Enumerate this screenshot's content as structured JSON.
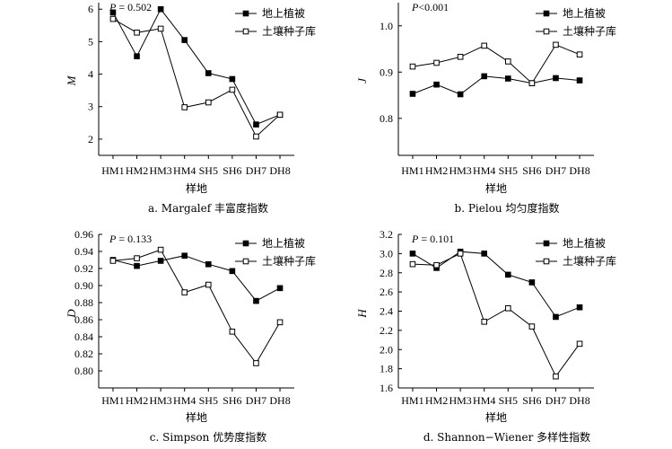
{
  "chart_data": [
    {
      "type": "line",
      "caption": "a. Margalef 丰富度指数",
      "p_label": "P",
      "p_text": " = 0.502",
      "ylabel": "M",
      "xlabel": "样地",
      "categories": [
        "HM1",
        "HM2",
        "HM3",
        "HM4",
        "SH5",
        "SH6",
        "DH7",
        "DH8"
      ],
      "ylim": [
        1.5,
        6.2
      ],
      "yticks": [
        2,
        3,
        4,
        5,
        6
      ],
      "ytick_labels": [
        "2",
        "3",
        "4",
        "5",
        "6"
      ],
      "series": [
        {
          "name": "地上植被",
          "marker": "filled",
          "values": [
            5.9,
            4.55,
            6.0,
            5.05,
            4.03,
            3.85,
            2.45,
            2.75
          ]
        },
        {
          "name": "土壤种子库",
          "marker": "hollow",
          "values": [
            5.7,
            5.28,
            5.4,
            2.98,
            3.13,
            3.52,
            2.08,
            2.75
          ]
        }
      ]
    },
    {
      "type": "line",
      "caption": "b. Pielou 均匀度指数",
      "p_label": "P",
      "p_text": "<0.001",
      "ylabel": "J",
      "xlabel": "样地",
      "categories": [
        "HM1",
        "HM2",
        "HM3",
        "HM4",
        "SH5",
        "SH6",
        "DH7",
        "DH8"
      ],
      "ylim": [
        0.72,
        1.05
      ],
      "yticks": [
        0.8,
        0.9,
        1.0
      ],
      "ytick_labels": [
        "0.8",
        "0.9",
        "1.0"
      ],
      "series": [
        {
          "name": "地上植被",
          "marker": "filled",
          "values": [
            0.853,
            0.873,
            0.852,
            0.891,
            0.886,
            0.876,
            0.887,
            0.882
          ]
        },
        {
          "name": "土壤种子库",
          "marker": "hollow",
          "values": [
            0.912,
            0.92,
            0.933,
            0.957,
            0.923,
            0.876,
            0.959,
            0.938
          ]
        }
      ]
    },
    {
      "type": "line",
      "caption": "c. Simpson 优势度指数",
      "p_label": "P",
      "p_text": " = 0.133",
      "ylabel": "D",
      "xlabel": "样地",
      "categories": [
        "HM1",
        "HM2",
        "HM3",
        "HM4",
        "SH5",
        "SH6",
        "DH7",
        "DH8"
      ],
      "ylim": [
        0.78,
        0.96
      ],
      "yticks": [
        0.8,
        0.82,
        0.84,
        0.86,
        0.88,
        0.9,
        0.92,
        0.94,
        0.96
      ],
      "ytick_labels": [
        "0.80",
        "0.82",
        "0.84",
        "0.86",
        "0.88",
        "0.90",
        "0.92",
        "0.94",
        "0.96"
      ],
      "series": [
        {
          "name": "地上植被",
          "marker": "filled",
          "values": [
            0.93,
            0.923,
            0.929,
            0.935,
            0.925,
            0.917,
            0.882,
            0.897
          ]
        },
        {
          "name": "土壤种子库",
          "marker": "hollow",
          "values": [
            0.929,
            0.932,
            0.942,
            0.892,
            0.901,
            0.846,
            0.809,
            0.857
          ]
        }
      ]
    },
    {
      "type": "line",
      "caption": "d. Shannon−Wiener 多样性指数",
      "p_label": "P",
      "p_text": " = 0.101",
      "ylabel": "H",
      "xlabel": "样地",
      "categories": [
        "HM1",
        "HM2",
        "HM3",
        "HM4",
        "SH5",
        "SH6",
        "DH7",
        "DH8"
      ],
      "ylim": [
        1.6,
        3.2
      ],
      "yticks": [
        1.6,
        1.8,
        2.0,
        2.2,
        2.4,
        2.6,
        2.8,
        3.0,
        3.2
      ],
      "ytick_labels": [
        "1.6",
        "1.8",
        "2.0",
        "2.2",
        "2.4",
        "2.6",
        "2.8",
        "3.0",
        "3.2"
      ],
      "series": [
        {
          "name": "地上植被",
          "marker": "filled",
          "values": [
            3.0,
            2.85,
            3.02,
            3.0,
            2.78,
            2.7,
            2.34,
            2.44
          ]
        },
        {
          "name": "土壤种子库",
          "marker": "hollow",
          "values": [
            2.89,
            2.88,
            3.0,
            2.29,
            2.43,
            2.24,
            1.72,
            2.06
          ]
        }
      ]
    }
  ]
}
